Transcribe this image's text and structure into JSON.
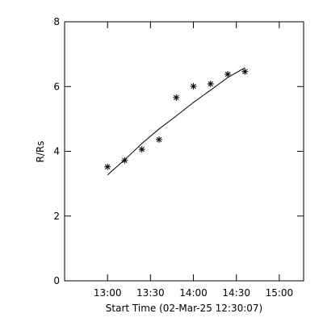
{
  "chart_data": {
    "type": "scatter",
    "xlabel": "Start Time (02-Mar-25 12:30:07)",
    "ylabel": "R/Rs",
    "x": [
      780,
      792,
      804,
      816,
      828,
      840,
      852,
      864,
      876
    ],
    "series": [
      {
        "type": "scatter",
        "color": "#000000",
        "values": [
          3.52,
          3.72,
          4.06,
          4.36,
          5.66,
          6.01,
          6.08,
          6.38,
          6.46
        ]
      },
      {
        "type": "line",
        "color": "#000000",
        "values": [
          3.27,
          3.74,
          4.24,
          4.69,
          5.09,
          5.51,
          5.89,
          6.28,
          6.58
        ]
      }
    ],
    "xlim": [
      750,
      917
    ],
    "ylim": [
      0,
      8
    ],
    "xticks": [
      {
        "value": 780,
        "label": "13:00"
      },
      {
        "value": 810,
        "label": "13:30"
      },
      {
        "value": 840,
        "label": "14:00"
      },
      {
        "value": 870,
        "label": "14:30"
      },
      {
        "value": 900,
        "label": "15:00"
      }
    ],
    "yticks": [
      0,
      2,
      4,
      6,
      8
    ]
  }
}
